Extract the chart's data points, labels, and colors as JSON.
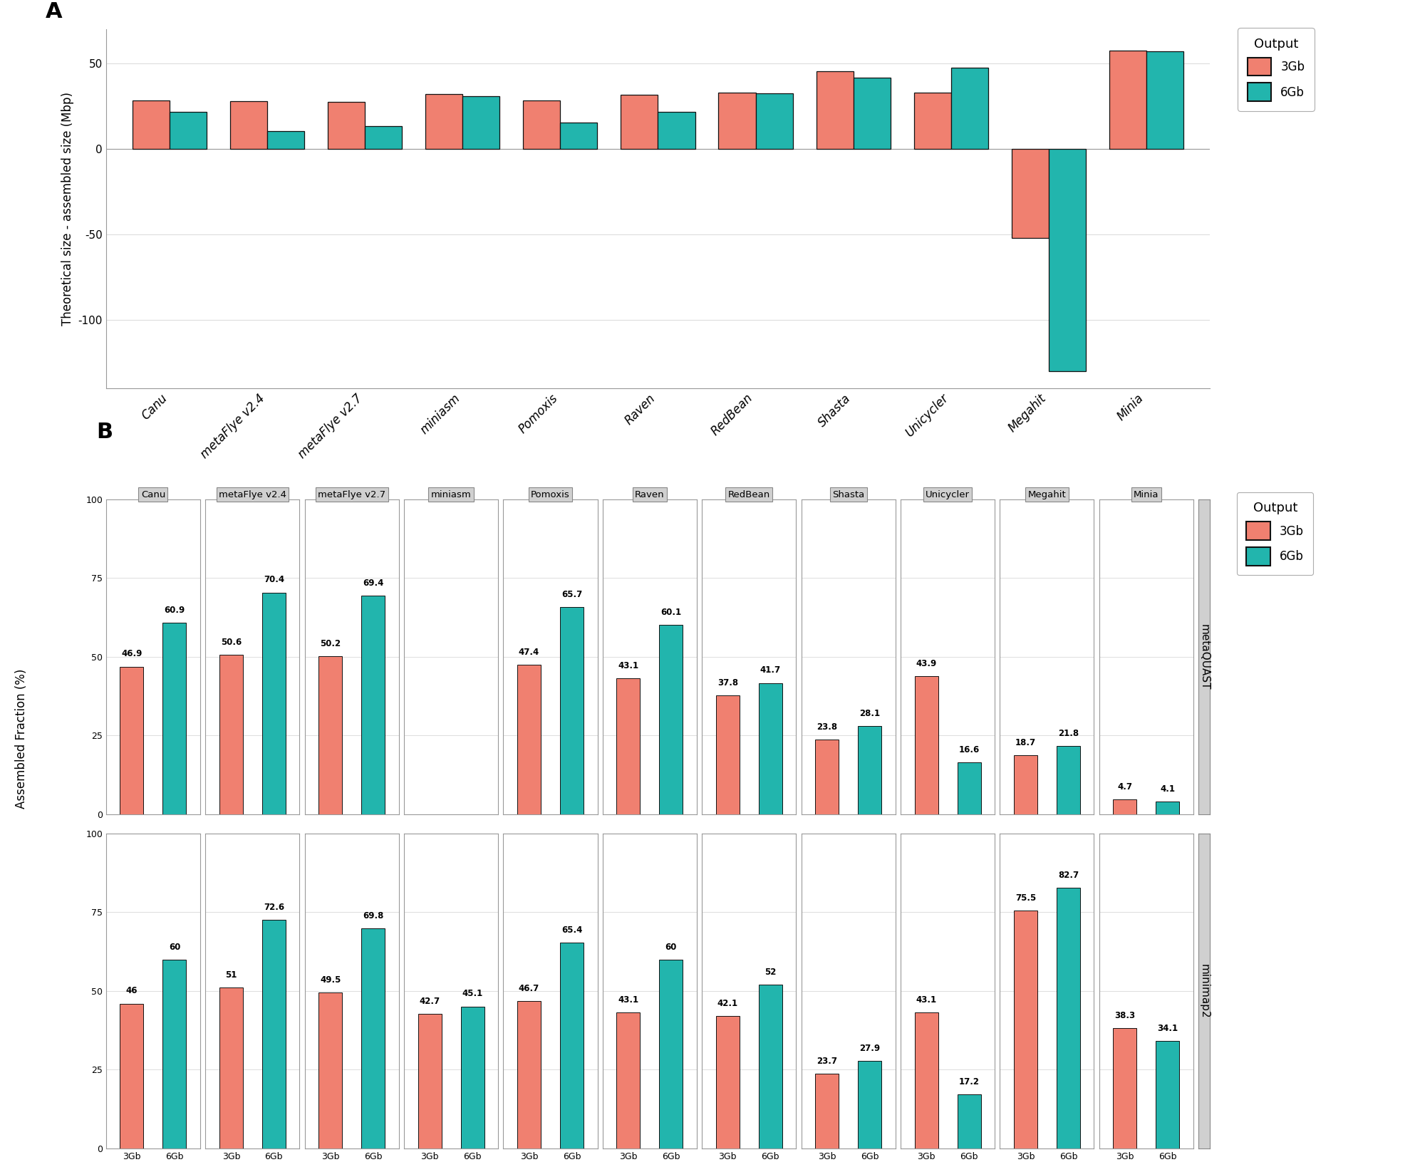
{
  "assemblers": [
    "Canu",
    "metaFlye v2.4",
    "metaFlye v2.7",
    "miniasm",
    "Pomoxis",
    "Raven",
    "RedBean",
    "Shasta",
    "Unicycler",
    "Megahit",
    "Minia"
  ],
  "panelA": {
    "val_3gb": [
      28.5,
      28.0,
      27.5,
      32.0,
      28.5,
      31.5,
      33.0,
      45.5,
      33.0,
      -52.0,
      57.5
    ],
    "val_6gb": [
      21.5,
      10.5,
      13.5,
      31.0,
      15.5,
      21.5,
      32.5,
      41.5,
      47.5,
      -130.0,
      57.0
    ]
  },
  "panelB_metaQUAST": {
    "val_3gb": [
      46.9,
      50.6,
      50.2,
      null,
      47.4,
      43.1,
      37.8,
      23.8,
      43.9,
      18.7,
      4.7
    ],
    "val_6gb": [
      60.9,
      70.4,
      69.4,
      null,
      65.7,
      60.1,
      41.7,
      28.1,
      16.6,
      21.8,
      4.1
    ]
  },
  "panelB_minimap2": {
    "val_3gb": [
      46.0,
      51.0,
      49.5,
      42.7,
      46.7,
      43.1,
      42.1,
      23.7,
      43.1,
      75.5,
      38.3
    ],
    "val_6gb": [
      60.0,
      72.6,
      69.8,
      45.1,
      65.4,
      60.0,
      52.0,
      27.9,
      17.2,
      82.7,
      34.1
    ]
  },
  "color_3gb": "#F08070",
  "color_6gb": "#22B5AD",
  "bg_color": "#F8F8F8",
  "strip_color": "#D0D0D0",
  "bar_edge_color": "#111111",
  "grid_color": "#DDDDDD",
  "ylim_A": [
    -140,
    70
  ],
  "yticks_A": [
    -100,
    -50,
    0,
    50
  ],
  "ylim_B": [
    0,
    100
  ],
  "yticks_B": [
    0,
    25,
    50,
    75,
    100
  ]
}
